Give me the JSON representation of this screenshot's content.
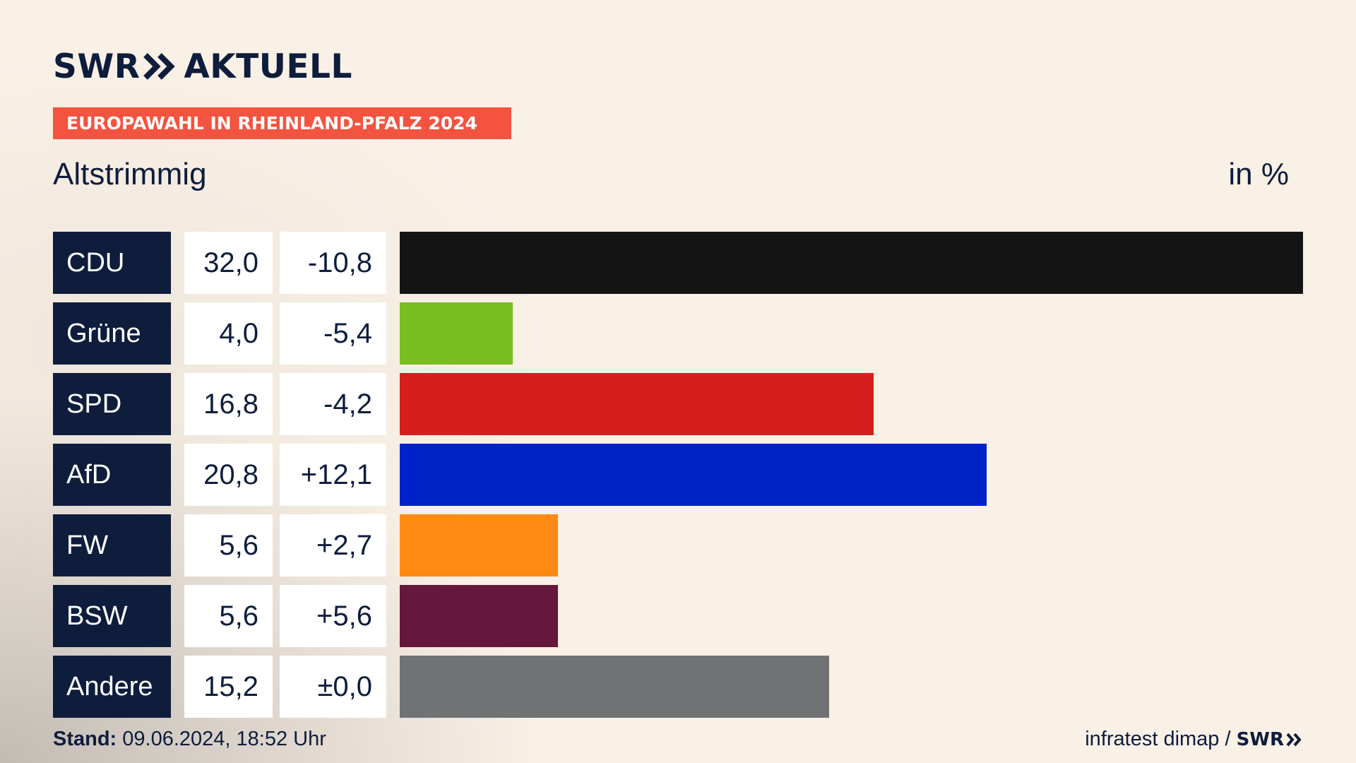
{
  "header": {
    "logo_left": "SWR",
    "logo_right": "AKTUELL",
    "logo_icon": "double-chevron-icon",
    "banner": "EUROPAWAHL IN RHEINLAND-PFALZ 2024",
    "subtitle": "Altstrimmig",
    "unit": "in %"
  },
  "chart_data": {
    "type": "bar",
    "orientation": "horizontal",
    "title": "EUROPAWAHL IN RHEINLAND-PFALZ 2024",
    "subtitle": "Altstrimmig",
    "unit": "in %",
    "categories": [
      "CDU",
      "Grüne",
      "SPD",
      "AfD",
      "FW",
      "BSW",
      "Andere"
    ],
    "values": [
      32.0,
      4.0,
      16.8,
      20.8,
      5.6,
      5.6,
      15.2
    ],
    "value_labels": [
      "32,0",
      "4,0",
      "16,8",
      "20,8",
      "5,6",
      "5,6",
      "15,2"
    ],
    "diff_labels": [
      "-10,8",
      "-5,4",
      "-4,2",
      "+12,1",
      "+2,7",
      "+5,6",
      "±0,0"
    ],
    "diffs": [
      -10.8,
      -5.4,
      -4.2,
      12.1,
      2.7,
      5.6,
      0.0
    ],
    "colors": [
      "#141414",
      "#78be1e",
      "#d61e1e",
      "#0022c9",
      "#fe8a13",
      "#64183c",
      "#717274"
    ],
    "xlim": [
      0,
      32.0
    ],
    "grid": false
  },
  "footer": {
    "stand_label": "Stand:",
    "stand_value": "09.06.2024, 18:52 Uhr",
    "source": "infratest dimap /",
    "source_logo": "SWR"
  }
}
